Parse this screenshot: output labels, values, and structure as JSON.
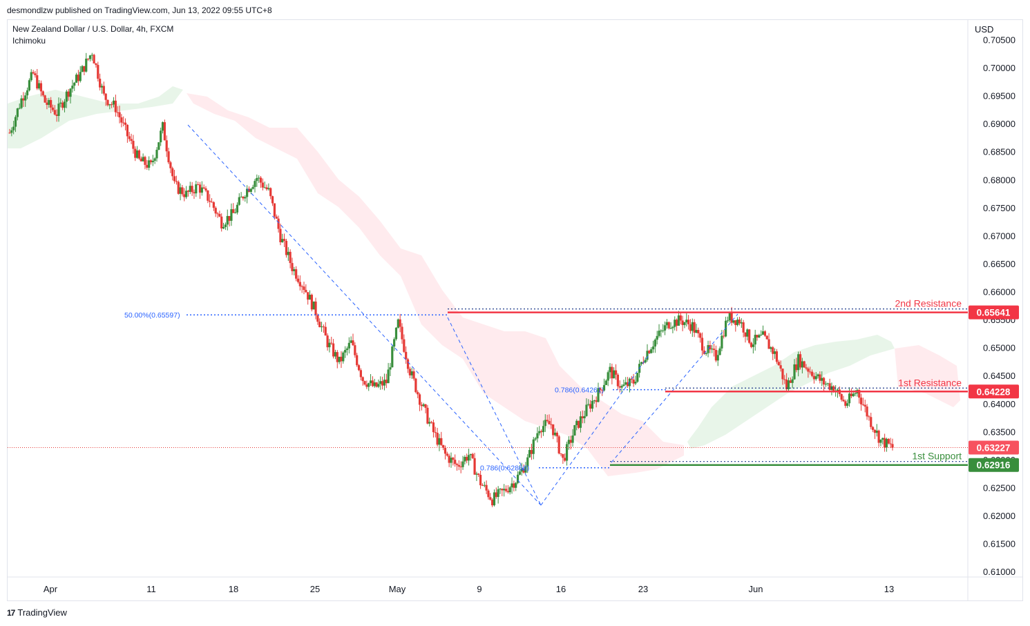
{
  "header": {
    "publisher_line": "desmondlzw published on TradingView.com, Jun 13, 2022 09:55 UTC+8"
  },
  "legend": {
    "symbol_line": "New Zealand Dollar / U.S. Dollar, 4h, FXCM",
    "indicator": "Ichimoku"
  },
  "currency": "USD",
  "footer": {
    "logo_mark": "17",
    "brand": "TradingView"
  },
  "colors": {
    "up": "#388e3c",
    "down": "#e53935",
    "resistance": "#f23645",
    "support": "#388e3c",
    "fib": "#2962ff",
    "cloud_bull": "#e8f5e9",
    "cloud_bear": "#ffebee",
    "label_last": "#f7525f"
  },
  "chart_data": {
    "type": "candlestick",
    "timeframe": "4h",
    "ylim": [
      0.61,
      0.7055
    ],
    "y_ticks": [
      "0.70500",
      "0.70000",
      "0.69500",
      "0.69000",
      "0.68500",
      "0.68000",
      "0.67500",
      "0.67000",
      "0.66500",
      "0.66000",
      "0.65500",
      "0.65000",
      "0.64500",
      "0.64000",
      "0.63500",
      "0.63000",
      "0.62500",
      "0.62000",
      "0.61500",
      "0.61000"
    ],
    "x_ticks": [
      "Apr",
      "11",
      "18",
      "25",
      "May",
      "9",
      "16",
      "23",
      "Jun",
      "13"
    ],
    "path_points": [
      [
        "Apr",
        0.6885
      ],
      [
        "Apr",
        0.6945
      ],
      [
        "4",
        0.699
      ],
      [
        "5",
        0.694
      ],
      [
        "6",
        0.692
      ],
      [
        "7",
        0.696
      ],
      [
        "8",
        0.699
      ],
      [
        "8",
        0.703
      ],
      [
        "9",
        0.695
      ],
      [
        "10",
        0.693
      ],
      [
        "11",
        0.688
      ],
      [
        "12",
        0.6835
      ],
      [
        "13",
        0.6825
      ],
      [
        "14",
        0.6895
      ],
      [
        "15",
        0.679
      ],
      [
        "16",
        0.6775
      ],
      [
        "17",
        0.679
      ],
      [
        "18",
        0.6765
      ],
      [
        "19",
        0.6725
      ],
      [
        "20",
        0.674
      ],
      [
        "21",
        0.678
      ],
      [
        "22",
        0.6805
      ],
      [
        "23",
        0.678
      ],
      [
        "24",
        0.67
      ],
      [
        "25",
        0.6645
      ],
      [
        "26",
        0.661
      ],
      [
        "27",
        0.6565
      ],
      [
        "28",
        0.651
      ],
      [
        "29",
        0.6475
      ],
      [
        "30",
        0.651
      ],
      [
        "May 1",
        0.6445
      ],
      [
        "May 2",
        0.643
      ],
      [
        "May 3",
        0.644
      ],
      [
        "May 5",
        0.6545
      ],
      [
        "May 6",
        0.646
      ],
      [
        "May 7",
        0.64
      ],
      [
        "May 8",
        0.635
      ],
      [
        "9",
        0.631
      ],
      [
        "10",
        0.629
      ],
      [
        "11",
        0.631
      ],
      [
        "12",
        0.626
      ],
      [
        "13",
        0.623
      ],
      [
        "14",
        0.6245
      ],
      [
        "15",
        0.6265
      ],
      [
        "16",
        0.63
      ],
      [
        "17",
        0.636
      ],
      [
        "18",
        0.6365
      ],
      [
        "19",
        0.63
      ],
      [
        "19",
        0.6355
      ],
      [
        "20",
        0.639
      ],
      [
        "21",
        0.642
      ],
      [
        "22",
        0.646
      ],
      [
        "23",
        0.643
      ],
      [
        "24",
        0.644
      ],
      [
        "25",
        0.649
      ],
      [
        "26",
        0.652
      ],
      [
        "27",
        0.6545
      ],
      [
        "28",
        0.655
      ],
      [
        "29",
        0.654
      ],
      [
        "30",
        0.65
      ],
      [
        "31",
        0.6485
      ],
      [
        "Jun 1",
        0.6555
      ],
      [
        "Jun 2",
        0.655
      ],
      [
        "Jun 3",
        0.651
      ],
      [
        "Jun 4",
        0.652
      ],
      [
        "Jun 5",
        0.649
      ],
      [
        "Jun 6",
        0.643
      ],
      [
        "Jun 7",
        0.648
      ],
      [
        "Jun 8",
        0.646
      ],
      [
        "Jun 9",
        0.644
      ],
      [
        "Jun 10",
        0.643
      ],
      [
        "Jun 11",
        0.64
      ],
      [
        "Jun 12",
        0.6425
      ],
      [
        "Jun 12",
        0.6375
      ],
      [
        "13",
        0.6335
      ],
      [
        "13",
        0.63227
      ]
    ],
    "levels": [
      {
        "name": "2nd Resistance",
        "value": "0.65641",
        "kind": "resistance"
      },
      {
        "name": "1st Resistance",
        "value": "0.64228",
        "kind": "resistance"
      },
      {
        "name": "1st Support",
        "value": "0.62916",
        "kind": "support"
      }
    ],
    "last_price": {
      "value": "0.63227"
    },
    "fib_labels": [
      {
        "text": "50.00%(0.65597)",
        "value": 0.65597
      },
      {
        "text": "0.786(0.64261)",
        "value": 0.64261
      },
      {
        "text": "0.786(0.62866)",
        "value": 0.62866
      }
    ],
    "grid": false,
    "legend": "top-left"
  }
}
